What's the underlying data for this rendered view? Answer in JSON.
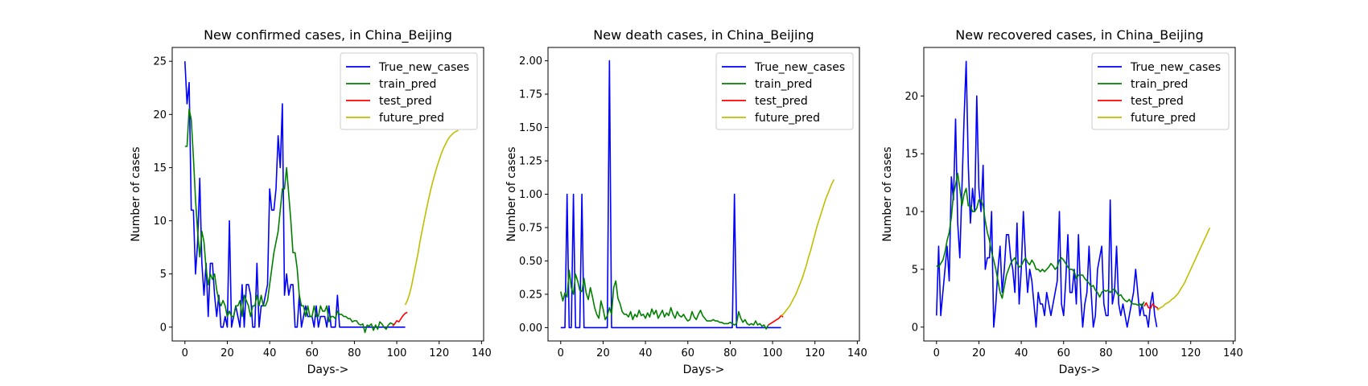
{
  "chart_data": [
    {
      "type": "line",
      "title": "New confirmed cases, in China_Beijing",
      "xlabel": "Days->",
      "ylabel": "Number of cases",
      "xlim": [
        -6,
        141
      ],
      "ylim": [
        -1.3,
        26.3
      ],
      "xticks": [
        0,
        20,
        40,
        60,
        80,
        100,
        120,
        140
      ],
      "yticks": [
        0,
        5,
        10,
        15,
        20,
        25
      ],
      "ytick_labels": [
        "0",
        "5",
        "10",
        "15",
        "20",
        "25"
      ],
      "legend_position": "top-right",
      "series": [
        {
          "name": "True_new_cases",
          "color": "#0000ff",
          "x_start": 0,
          "values": [
            25,
            21,
            23,
            11,
            11,
            5,
            8,
            14,
            6,
            3,
            6,
            1,
            6,
            6,
            3,
            1,
            3,
            0,
            0,
            1,
            0,
            10,
            0,
            1,
            2,
            1,
            0,
            4,
            0,
            4,
            4,
            3,
            0,
            0,
            6,
            0,
            2,
            2,
            3,
            4,
            13,
            11,
            11,
            13,
            18,
            15,
            21,
            3,
            5,
            3,
            4,
            4,
            0,
            0,
            3,
            0,
            1,
            2,
            1,
            1,
            1,
            0,
            2,
            0,
            1,
            1,
            1,
            0,
            2,
            0,
            0,
            0,
            3,
            0,
            0,
            0,
            0,
            0,
            0,
            0,
            0,
            0,
            0,
            0,
            0,
            0,
            0,
            0,
            0,
            0,
            0,
            0,
            0,
            0,
            0,
            0,
            0,
            0,
            0,
            0,
            0,
            0,
            0,
            0,
            0
          ]
        },
        {
          "name": "train_pred",
          "color": "#008000",
          "x_start": 0,
          "values": [
            17,
            17,
            20.5,
            19.5,
            16,
            12,
            9,
            6.6,
            9,
            8,
            5.5,
            4,
            5,
            4.5,
            5,
            3.5,
            2.5,
            2,
            2.5,
            2,
            1,
            1.5,
            1,
            1,
            2,
            2,
            2.5,
            1,
            3,
            2.5,
            2,
            1,
            2,
            2,
            3,
            2,
            3,
            2,
            2,
            2.5,
            4,
            5.5,
            7,
            8,
            9,
            11,
            13,
            13,
            15,
            12.5,
            10,
            7,
            7,
            5.5,
            3,
            2,
            2,
            1,
            2,
            1,
            1,
            2,
            1,
            1,
            2,
            1.5,
            1.5,
            2,
            0.5,
            1,
            1,
            0.8,
            1.5,
            1.2,
            1.2,
            1,
            1,
            0.8,
            0.8,
            0.5,
            0.6,
            0.6,
            0.3,
            0.2,
            0.3,
            -0.5,
            0.2,
            0.1,
            0.3,
            -0.3,
            0.2,
            -0.2,
            0.5,
            0.3,
            0,
            -0.2,
            0.2,
            0.4,
            0.3,
            0.2
          ]
        },
        {
          "name": "test_pred",
          "color": "#ff0000",
          "x_start": 98,
          "values": [
            0.1,
            0.3,
            0.6,
            0.5,
            0.8,
            1.1,
            1.3,
            1.4
          ]
        },
        {
          "name": "future_pred",
          "color": "#bfbf00",
          "x_start": 104,
          "values": [
            2.1,
            2.5,
            3.1,
            3.9,
            4.9,
            5.9,
            6.9,
            8.1,
            9.1,
            10.1,
            11.1,
            12,
            12.9,
            13.7,
            14.4,
            15.1,
            15.7,
            16.3,
            16.8,
            17.2,
            17.6,
            17.9,
            18.1,
            18.3,
            18.4,
            18.5
          ]
        }
      ]
    },
    {
      "type": "line",
      "title": "New death cases, in China_Beijing",
      "xlabel": "Days->",
      "ylabel": "Number of cases",
      "xlim": [
        -6,
        141
      ],
      "ylim": [
        -0.1,
        2.1
      ],
      "xticks": [
        0,
        20,
        40,
        60,
        80,
        100,
        120,
        140
      ],
      "yticks": [
        0,
        0.25,
        0.5,
        0.75,
        1.0,
        1.25,
        1.5,
        1.75,
        2.0
      ],
      "ytick_labels": [
        "0.00",
        "0.25",
        "0.50",
        "0.75",
        "1.00",
        "1.25",
        "1.50",
        "1.75",
        "2.00"
      ],
      "legend_position": "top-right",
      "series": [
        {
          "name": "True_new_cases",
          "color": "#0000ff",
          "x_start": 0,
          "values": [
            0,
            0,
            0,
            1,
            0,
            0,
            1,
            0,
            0,
            0,
            1,
            0,
            0,
            0,
            0,
            0,
            0,
            0,
            0,
            0,
            0,
            0,
            0,
            2,
            0,
            0,
            0,
            0,
            0,
            0,
            0,
            0,
            0,
            0,
            0,
            0,
            0,
            0,
            0,
            0,
            0,
            0,
            0,
            0,
            0,
            0,
            0,
            0,
            0,
            0,
            0,
            0,
            0,
            0,
            0,
            0,
            0,
            0,
            0,
            0,
            0,
            0,
            0,
            0,
            0,
            0,
            0,
            0,
            0,
            0,
            0,
            0,
            0,
            0,
            0,
            0,
            0,
            0,
            0,
            0,
            0,
            0,
            1,
            0,
            0,
            0,
            0,
            0,
            0,
            0,
            0,
            0,
            0,
            0,
            0,
            0,
            0,
            0,
            0,
            0,
            0,
            0,
            0,
            0,
            0
          ]
        },
        {
          "name": "train_pred",
          "color": "#008000",
          "x_start": 0,
          "values": [
            0.27,
            0.2,
            0.26,
            0.23,
            0.43,
            0.3,
            0.25,
            0.4,
            0.35,
            0.28,
            0.27,
            0.37,
            0.26,
            0.21,
            0.3,
            0.23,
            0.15,
            0.1,
            0.07,
            0.2,
            0.14,
            0.06,
            0.09,
            0.15,
            0.1,
            0.3,
            0.35,
            0.22,
            0.18,
            0.12,
            0.1,
            0.1,
            0.08,
            0.12,
            0.06,
            0.1,
            0.08,
            0.13,
            0.09,
            0.1,
            0.07,
            0.11,
            0.08,
            0.14,
            0.1,
            0.13,
            0.07,
            0.1,
            0.13,
            0.08,
            0.11,
            0.09,
            0.15,
            0.1,
            0.07,
            0.12,
            0.09,
            0.08,
            0.1,
            0.07,
            0.05,
            0.06,
            0.12,
            0.08,
            0.06,
            0.1,
            0.13,
            0.09,
            0.07,
            0.05,
            0.05,
            0.05,
            0.06,
            0.05,
            0.05,
            0.04,
            0.04,
            0.03,
            0.03,
            0.03,
            0.04,
            0.03,
            0.02,
            0.03,
            0.12,
            0.07,
            0.04,
            0.06,
            0.03,
            0.02,
            0.03,
            0.02,
            0.05,
            0.02,
            0.03,
            0.01,
            0.02,
            -0.01,
            0.02
          ]
        },
        {
          "name": "test_pred",
          "color": "#ff0000",
          "x_start": 98,
          "values": [
            0.02,
            0.03,
            0.04,
            0.05,
            0.06,
            0.07,
            0.09,
            0.08
          ]
        },
        {
          "name": "future_pred",
          "color": "#bfbf00",
          "x_start": 104,
          "values": [
            0.09,
            0.1,
            0.12,
            0.14,
            0.16,
            0.19,
            0.22,
            0.25,
            0.29,
            0.33,
            0.37,
            0.42,
            0.47,
            0.53,
            0.58,
            0.64,
            0.7,
            0.76,
            0.81,
            0.86,
            0.91,
            0.96,
            1.0,
            1.04,
            1.08,
            1.11
          ]
        }
      ]
    },
    {
      "type": "line",
      "title": "New recovered cases, in China_Beijing",
      "xlabel": "Days->",
      "ylabel": "Number of cases",
      "xlim": [
        -6,
        141
      ],
      "ylim": [
        -1.2,
        24.2
      ],
      "xticks": [
        0,
        20,
        40,
        60,
        80,
        100,
        120,
        140
      ],
      "yticks": [
        0,
        5,
        10,
        15,
        20
      ],
      "ytick_labels": [
        "0",
        "5",
        "10",
        "15",
        "20"
      ],
      "legend_position": "top-right",
      "series": [
        {
          "name": "True_new_cases",
          "color": "#0000ff",
          "x_start": 0,
          "values": [
            1,
            7,
            1,
            3,
            5,
            7,
            4,
            13,
            11,
            18,
            9,
            6,
            12,
            18,
            23,
            14,
            9,
            12,
            10,
            20,
            12,
            10,
            14,
            5,
            6,
            6,
            10,
            0,
            2,
            5,
            7,
            3,
            5,
            8,
            8,
            6,
            5,
            3,
            9,
            2,
            5,
            10,
            6,
            3,
            5,
            4,
            2,
            0,
            3,
            2,
            2,
            1,
            3,
            2,
            1,
            2,
            3,
            4,
            10,
            2,
            1,
            4,
            8,
            3,
            3,
            5,
            2,
            8,
            3,
            0,
            2,
            3,
            7,
            3,
            0,
            1,
            5,
            6,
            7,
            2,
            1,
            1,
            11,
            2,
            3,
            7,
            2,
            1,
            2,
            1,
            0,
            1,
            2,
            3,
            5,
            3,
            1,
            2,
            1,
            1,
            0,
            2,
            3,
            1,
            0
          ]
        },
        {
          "name": "train_pred",
          "color": "#008000",
          "x_start": 0,
          "values": [
            5.3,
            5.2,
            5.5,
            5.8,
            6.5,
            7.5,
            8.2,
            9.5,
            11.5,
            12.3,
            13.3,
            12,
            10.5,
            11.5,
            12,
            10.5,
            10.5,
            10,
            10,
            10.3,
            11,
            11,
            10.5,
            9.2,
            8.2,
            7.5,
            6.5,
            5.8,
            5,
            4,
            3,
            2.5,
            3.5,
            4.5,
            5,
            5.5,
            5.8,
            6,
            5.5,
            5.2,
            5.3,
            5.7,
            6,
            5.6,
            5.4,
            5.8,
            5.5,
            5,
            5,
            4.8,
            5,
            4.8,
            5,
            5.2,
            5.5,
            5.3,
            5,
            5.2,
            5.8,
            6,
            5.8,
            5.5,
            5.2,
            5,
            5,
            4.8,
            4.2,
            4.5,
            4.5,
            4.5,
            4.2,
            4,
            3.8,
            3.5,
            3.6,
            3.2,
            3,
            2.6,
            3,
            3.2,
            3.1,
            3.2,
            3,
            3.2,
            3.3,
            3,
            2.7,
            2.8,
            2.5,
            2.3,
            2.2,
            2.4,
            2.1,
            2,
            2,
            1.9,
            2,
            1.8,
            2.2
          ]
        },
        {
          "name": "test_pred",
          "color": "#ff0000",
          "x_start": 98,
          "values": [
            1.8,
            2.1,
            1.7,
            1.6,
            2,
            1.8,
            1.7,
            1.5
          ]
        },
        {
          "name": "future_pred",
          "color": "#bfbf00",
          "x_start": 104,
          "values": [
            1.5,
            1.6,
            1.7,
            1.8,
            2,
            2.1,
            2.2,
            2.4,
            2.5,
            2.7,
            2.9,
            3.2,
            3.5,
            3.8,
            4.2,
            4.6,
            5,
            5.4,
            5.8,
            6.2,
            6.6,
            7,
            7.4,
            7.8,
            8.2,
            8.6
          ]
        }
      ]
    }
  ]
}
